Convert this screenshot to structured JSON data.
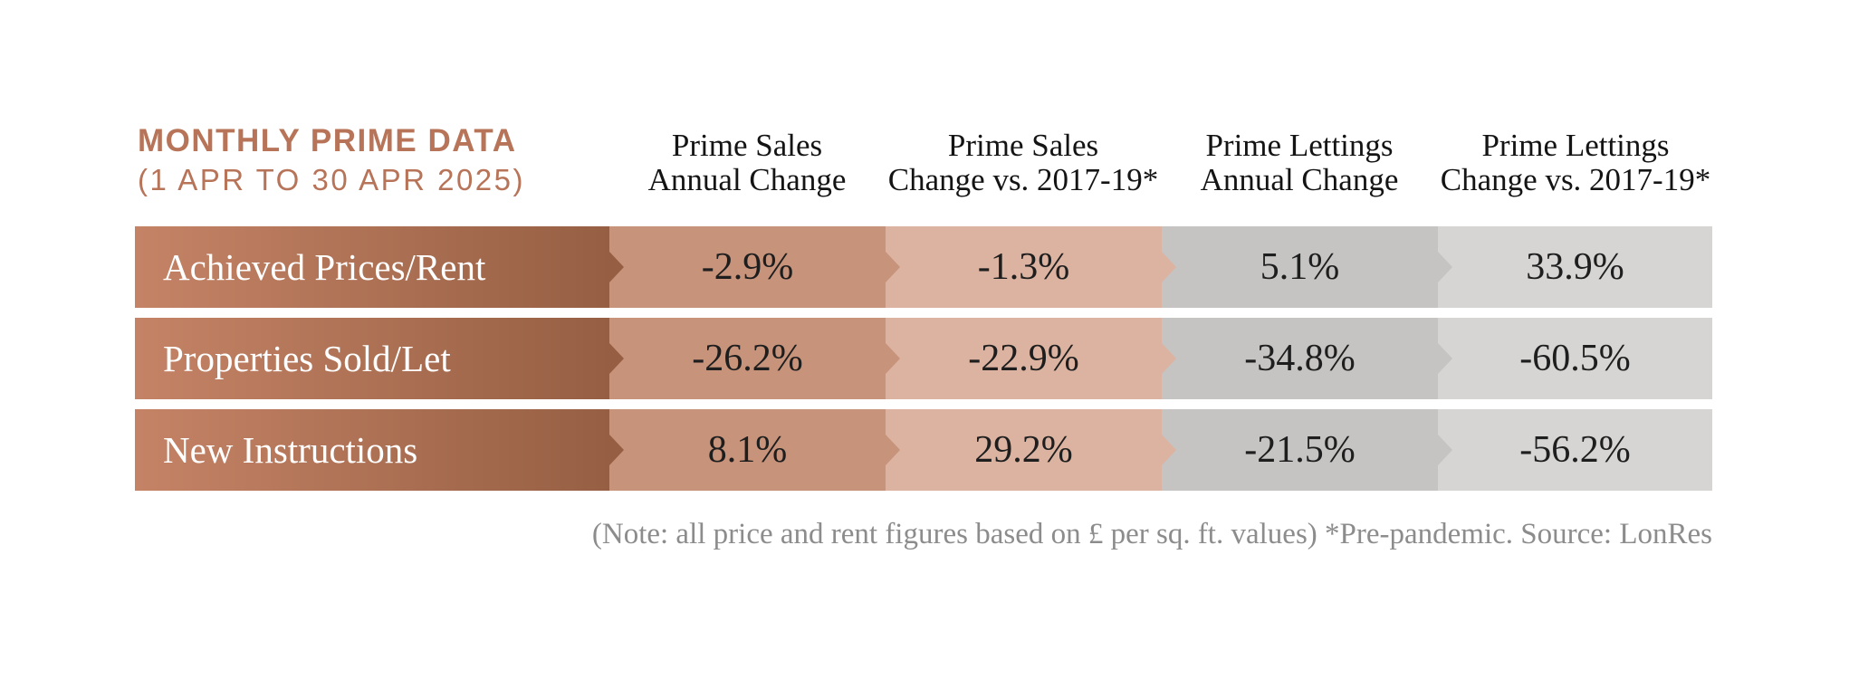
{
  "title": {
    "line1": "MONTHLY PRIME DATA",
    "line2": "(1 APR TO 30 APR 2025)"
  },
  "table": {
    "columns": [
      {
        "line1": "Prime Sales",
        "line2": "Annual Change"
      },
      {
        "line1": "Prime Sales",
        "line2": "Change vs. 2017-19*"
      },
      {
        "line1": "Prime Lettings",
        "line2": "Annual Change"
      },
      {
        "line1": "Prime Lettings",
        "line2": "Change vs. 2017-19*"
      }
    ],
    "rows": [
      {
        "label": "Achieved Prices/Rent",
        "values": [
          "-2.9%",
          "-1.3%",
          "5.1%",
          "33.9%"
        ]
      },
      {
        "label": "Properties Sold/Let",
        "values": [
          "-26.2%",
          "-22.9%",
          "-34.8%",
          "-60.5%"
        ]
      },
      {
        "label": "New Instructions",
        "values": [
          "8.1%",
          "29.2%",
          "-21.5%",
          "-56.2%"
        ]
      }
    ]
  },
  "footnote": "(Note: all price and rent figures based on £ per sq. ft. values) *Pre-pandemic. Source: LonRes",
  "colors": {
    "page_bg": "#ffffff",
    "terracotta": "#b77459",
    "label_grad_left": "#c58366",
    "label_grad_right": "#965f43",
    "col1_bg": "#c7937b",
    "col2_bg": "#dcb3a1",
    "col3_bg": "#c5c4c2",
    "col4_bg": "#d6d5d3",
    "label_text": "#ffffff",
    "header_text": "#141414",
    "value_text": "#1e1e1e",
    "note_text": "#8c8c8c"
  },
  "chart_data": {
    "type": "table",
    "title": "MONTHLY PRIME DATA (1 APR TO 30 APR 2025)",
    "columns": [
      "Prime Sales Annual Change",
      "Prime Sales Change vs. 2017-19*",
      "Prime Lettings Annual Change",
      "Prime Lettings Change vs. 2017-19*"
    ],
    "rows": [
      {
        "label": "Achieved Prices/Rent",
        "values_pct": [
          -2.9,
          -1.3,
          5.1,
          33.9
        ]
      },
      {
        "label": "Properties Sold/Let",
        "values_pct": [
          -26.2,
          -22.9,
          -34.8,
          -60.5
        ]
      },
      {
        "label": "New Instructions",
        "values_pct": [
          8.1,
          29.2,
          -21.5,
          -56.2
        ]
      }
    ],
    "note": "(Note: all price and rent figures based on £ per sq. ft. values) *Pre-pandemic. Source: LonRes"
  }
}
